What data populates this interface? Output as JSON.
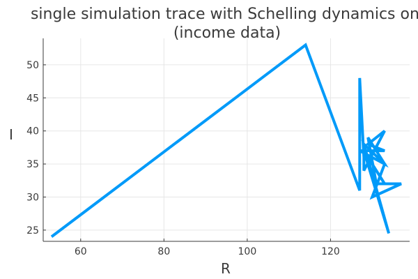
{
  "chart_data": {
    "type": "line",
    "title": "single simulation trace with Schelling dynamics onl",
    "subtitle": "(income data)",
    "xlabel": "R",
    "ylabel": "I",
    "xlim": [
      51,
      139
    ],
    "ylim": [
      23.3,
      54.0
    ],
    "xticks": [
      60,
      80,
      100,
      120
    ],
    "yticks": [
      25,
      30,
      35,
      40,
      45,
      50
    ],
    "grid": true,
    "legend": "none",
    "series": [
      {
        "color": "#009af9",
        "x": [
          53,
          114,
          127,
          127,
          128,
          128,
          133,
          129,
          133,
          127,
          133,
          129,
          131,
          137,
          130,
          133,
          128,
          134,
          128,
          133
        ],
        "y": [
          24,
          53,
          31,
          48,
          36,
          34,
          40,
          38,
          37,
          37,
          35,
          39,
          32,
          32,
          30,
          35,
          38,
          24.5,
          37,
          32
        ]
      }
    ]
  }
}
